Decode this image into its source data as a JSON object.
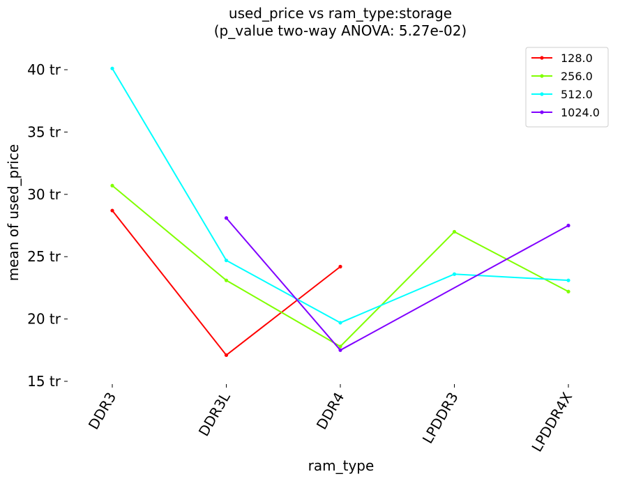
{
  "chart_data": {
    "type": "line",
    "title_line1": "used_price vs ram_type:storage",
    "title_line2": "(p_value two-way ANOVA: 5.27e-02)",
    "xlabel": "ram_type",
    "ylabel": "mean of used_price",
    "categories": [
      "DDR3",
      "DDR3L",
      "DDR4",
      "LPDDR3",
      "LPDDR4X"
    ],
    "ylim": [
      15,
      40
    ],
    "yticks": [
      15,
      20,
      25,
      30,
      35,
      40
    ],
    "ytick_labels": [
      "15 tr",
      "20 tr",
      "25 tr",
      "30 tr",
      "35 tr",
      "40 tr"
    ],
    "grid": false,
    "legend_position": "top-right",
    "series": [
      {
        "name": "128.0",
        "color": "#ff0000",
        "values": [
          28.7,
          17.1,
          24.2,
          null,
          null
        ]
      },
      {
        "name": "256.0",
        "color": "#80ff00",
        "values": [
          30.7,
          23.1,
          17.8,
          27.0,
          22.2
        ]
      },
      {
        "name": "512.0",
        "color": "#00ffff",
        "values": [
          40.1,
          24.7,
          19.7,
          23.6,
          23.1
        ]
      },
      {
        "name": "1024.0",
        "color": "#8000ff",
        "values": [
          null,
          28.1,
          17.5,
          null,
          27.5
        ]
      }
    ]
  }
}
